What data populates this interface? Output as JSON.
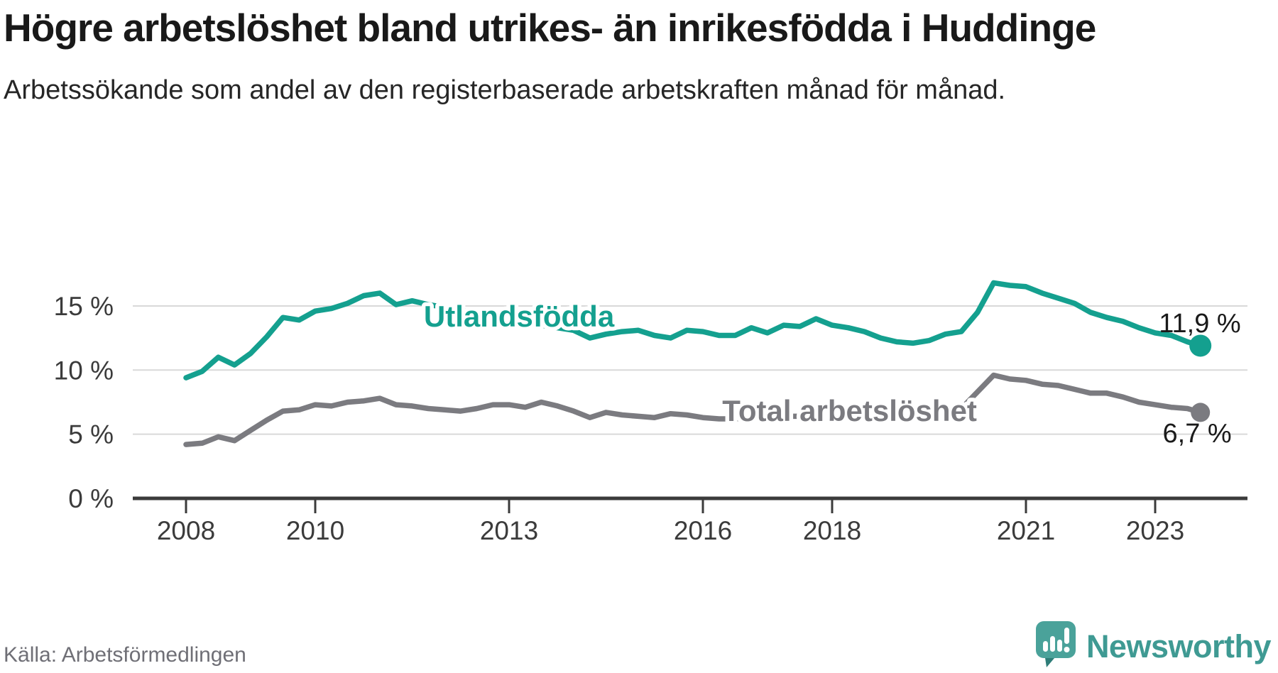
{
  "header": {
    "title": "Högre arbetslöshet bland utrikes- än inrikesfödda i Huddinge",
    "subtitle": "Arbetssökande som andel av den registerbaserade arbetskraften månad för månad."
  },
  "footer": {
    "source": "Källa: Arbetsförmedlingen",
    "brand": "Newsworthy",
    "logo_icon": "newsworthy-speech-bubble-bar-chart-icon"
  },
  "colors": {
    "series_utlandsfodda": "#14a08f",
    "series_total": "#7b7b80",
    "axis": "#3b3b3b",
    "gridline": "#d9d9d9",
    "title_text": "#191919",
    "subtitle_text": "#262626",
    "source_text": "#6f6f76",
    "brand_teal": "#3f9a93",
    "logo_bubble": "#4aa29a",
    "logo_bubble_fold": "#2e7d78"
  },
  "chart_data": {
    "type": "line",
    "title": "Högre arbetslöshet bland utrikes- än inrikesfödda i Huddinge",
    "subtitle": "Arbetssökande som andel av den registerbaserade arbetskraften månad för månad.",
    "xlabel": "",
    "ylabel": "",
    "grid": "horizontal",
    "legend_position": "inline-labels",
    "xlim": [
      2007.9,
      2024.4
    ],
    "ylim": [
      0,
      20
    ],
    "x_ticks": [
      2008,
      2010,
      2013,
      2016,
      2018,
      2021,
      2023
    ],
    "x_tick_labels": [
      "2008",
      "2010",
      "2013",
      "2016",
      "2018",
      "2021",
      "2023"
    ],
    "y_ticks": [
      0,
      5,
      10,
      15
    ],
    "y_tick_labels": [
      "0 %",
      "5 %",
      "10 %",
      "15 %"
    ],
    "x": [
      2008,
      2008.25,
      2008.5,
      2008.75,
      2009,
      2009.25,
      2009.5,
      2009.75,
      2010,
      2010.25,
      2010.5,
      2010.75,
      2011,
      2011.25,
      2011.5,
      2011.75,
      2012,
      2012.25,
      2012.5,
      2012.75,
      2013,
      2013.25,
      2013.5,
      2013.75,
      2014,
      2014.25,
      2014.5,
      2014.75,
      2015,
      2015.25,
      2015.5,
      2015.75,
      2016,
      2016.25,
      2016.5,
      2016.75,
      2017,
      2017.25,
      2017.5,
      2017.75,
      2018,
      2018.25,
      2018.5,
      2018.75,
      2019,
      2019.25,
      2019.5,
      2019.75,
      2020,
      2020.25,
      2020.5,
      2020.75,
      2021,
      2021.25,
      2021.5,
      2021.75,
      2022,
      2022.25,
      2022.5,
      2022.75,
      2023,
      2023.25,
      2023.5,
      2023.7
    ],
    "series": [
      {
        "name": "Utlandsfödda",
        "color": "#14a08f",
        "end_label": "11,9 %",
        "end_value": 11.9,
        "label_pos": {
          "x": 2011.68,
          "y": 13.4
        },
        "values": [
          9.4,
          9.9,
          11.0,
          10.4,
          11.3,
          12.6,
          14.1,
          13.9,
          14.6,
          14.8,
          15.2,
          15.8,
          16.0,
          15.1,
          15.4,
          15.1,
          14.9,
          14.7,
          14.4,
          14.2,
          13.9,
          13.7,
          13.5,
          13.3,
          13.1,
          12.5,
          12.8,
          13.0,
          13.1,
          12.7,
          12.5,
          13.1,
          13.0,
          12.7,
          12.7,
          13.3,
          12.9,
          13.5,
          13.4,
          14.0,
          13.5,
          13.3,
          13.0,
          12.5,
          12.2,
          12.1,
          12.3,
          12.8,
          13.0,
          14.5,
          16.8,
          16.6,
          16.5,
          16.0,
          15.6,
          15.2,
          14.5,
          14.1,
          13.8,
          13.3,
          12.9,
          12.7,
          12.2,
          11.9
        ]
      },
      {
        "name": "Total arbetslöshet",
        "color": "#7b7b80",
        "end_label": "6,7 %",
        "end_value": 6.7,
        "label_pos": {
          "x": 2016.3,
          "y": 6.03
        },
        "values": [
          4.2,
          4.3,
          4.8,
          4.5,
          5.3,
          6.1,
          6.8,
          6.9,
          7.3,
          7.2,
          7.5,
          7.6,
          7.8,
          7.3,
          7.2,
          7.0,
          6.9,
          6.8,
          7.0,
          7.3,
          7.3,
          7.1,
          7.5,
          7.2,
          6.8,
          6.3,
          6.7,
          6.5,
          6.4,
          6.3,
          6.6,
          6.5,
          6.3,
          6.2,
          6.2,
          6.3,
          6.3,
          6.4,
          6.4,
          6.3,
          6.3,
          6.4,
          6.4,
          6.5,
          6.5,
          6.6,
          6.7,
          6.8,
          7.0,
          8.3,
          9.6,
          9.3,
          9.2,
          8.9,
          8.8,
          8.5,
          8.2,
          8.2,
          7.9,
          7.5,
          7.3,
          7.1,
          7.0,
          6.7
        ]
      }
    ]
  }
}
